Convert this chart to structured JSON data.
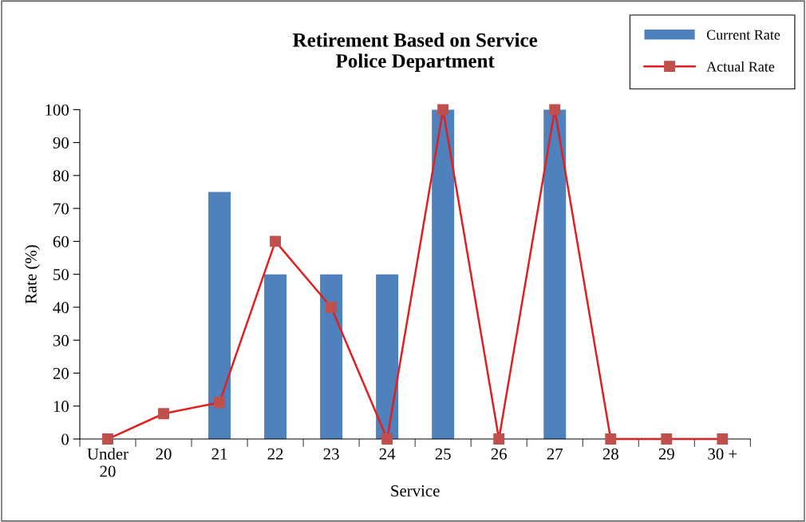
{
  "chart_data": {
    "type": "bar",
    "title": "Retirement Based on Service\nPolice Department",
    "xlabel": "Service",
    "ylabel": "Rate (%)",
    "categories": [
      "Under\n20",
      "20",
      "21",
      "22",
      "23",
      "24",
      "25",
      "26",
      "27",
      "28",
      "29",
      "30 +"
    ],
    "series": [
      {
        "name": "Current Rate",
        "color": "#4f81bd",
        "values": [
          0,
          0,
          75,
          50,
          50,
          50,
          100,
          0,
          100,
          0,
          0,
          0
        ]
      },
      {
        "name": "Actual Rate",
        "type": "line",
        "color": "#e02020",
        "marker": "square",
        "values": [
          0,
          7.7,
          11.1,
          60,
          40,
          0,
          100,
          0,
          100,
          0,
          0,
          0
        ]
      }
    ],
    "ylim": [
      0,
      100
    ],
    "yticks": [
      0,
      10,
      20,
      30,
      40,
      50,
      60,
      70,
      80,
      90,
      100
    ],
    "grid": false,
    "legend": "top right"
  }
}
